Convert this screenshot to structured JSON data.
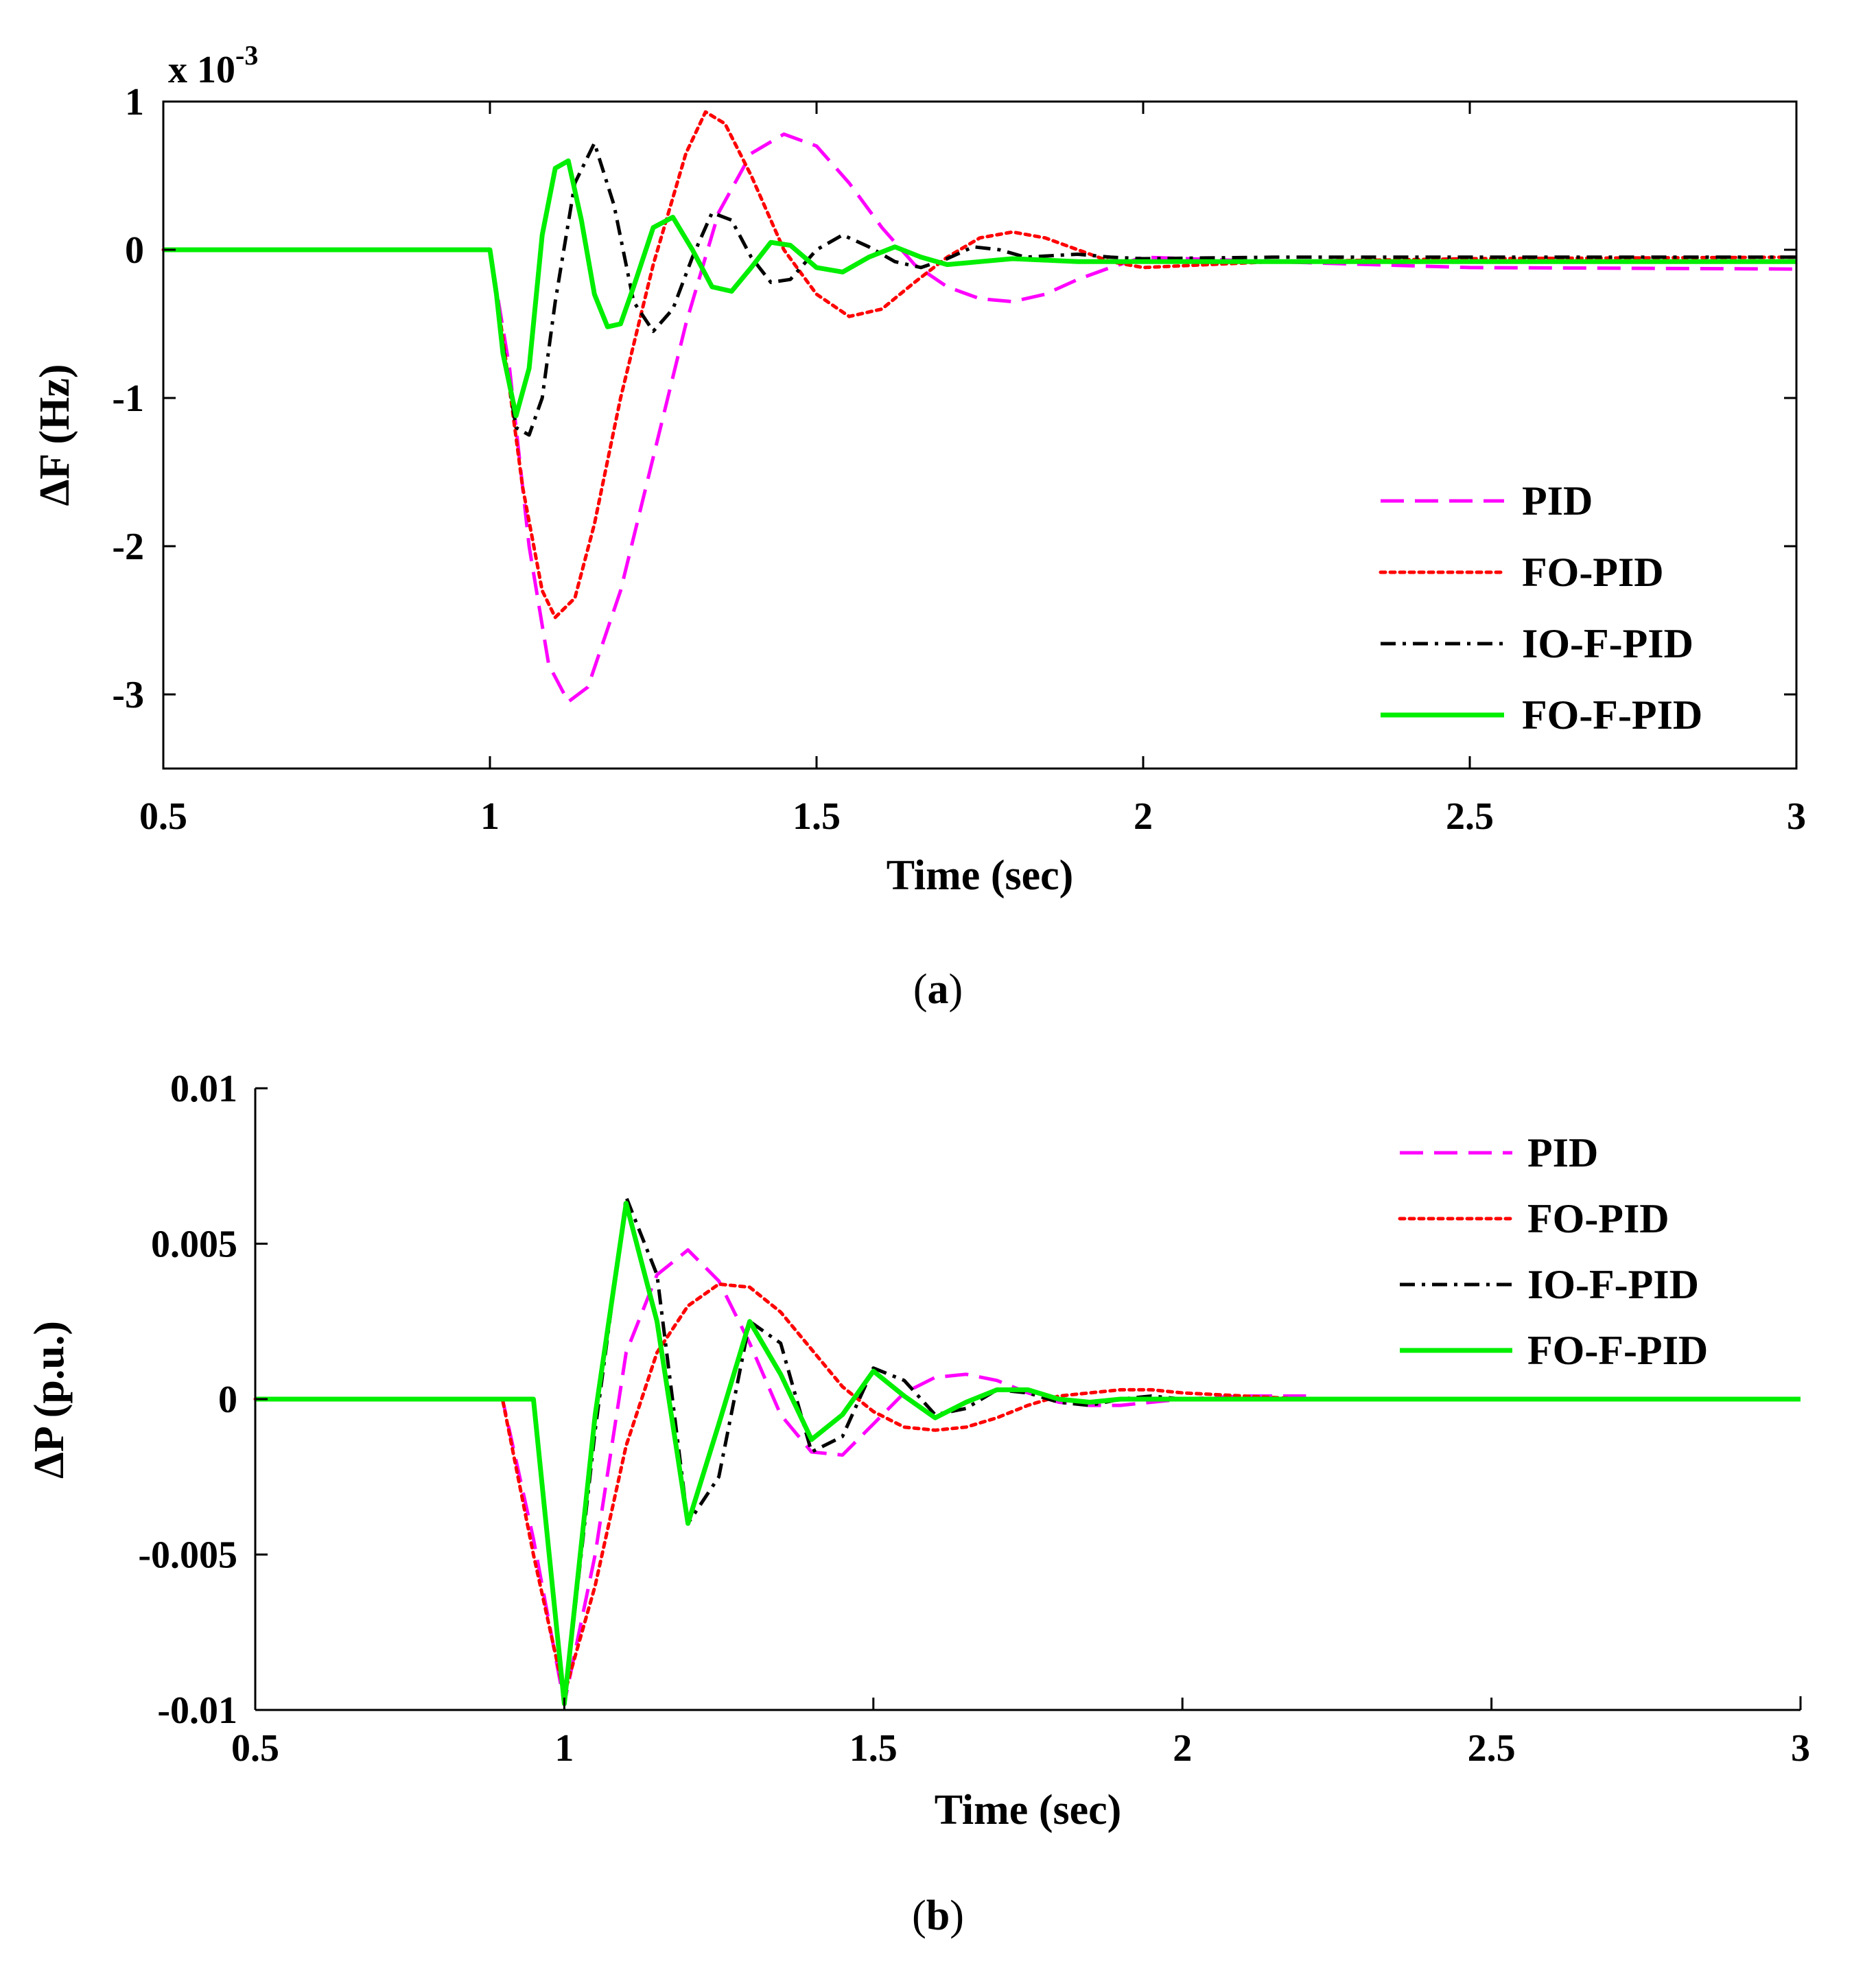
{
  "chart_data": [
    {
      "id": "a",
      "type": "line",
      "caption_letter": "a",
      "xlabel": "Time (sec)",
      "ylabel": "ΔF (Hz)",
      "multiplier_base": "x 10",
      "multiplier_exp": "-3",
      "xlim": [
        0.5,
        3
      ],
      "ylim": [
        -3.5,
        1
      ],
      "xticks": [
        0.5,
        1,
        1.5,
        2,
        2.5,
        3
      ],
      "xtick_labels": [
        "0.5",
        "1",
        "1.5",
        "2",
        "2.5",
        "3"
      ],
      "yticks": [
        -3,
        -2,
        -1,
        0,
        1
      ],
      "ytick_labels": [
        "-3",
        "-2",
        "-1",
        "0",
        "1"
      ],
      "legend_position": "bottom-right",
      "series": [
        {
          "name": "PID",
          "color": "#ff00ff",
          "style": "dashed",
          "x": [
            0.5,
            1.0,
            1.03,
            1.06,
            1.09,
            1.12,
            1.15,
            1.2,
            1.25,
            1.3,
            1.35,
            1.4,
            1.45,
            1.5,
            1.55,
            1.6,
            1.65,
            1.7,
            1.75,
            1.8,
            1.85,
            1.9,
            1.95,
            2.0,
            2.2,
            2.5,
            3.0
          ],
          "y": [
            0,
            0,
            -0.8,
            -2.0,
            -2.8,
            -3.05,
            -2.95,
            -2.3,
            -1.4,
            -0.5,
            0.25,
            0.65,
            0.78,
            0.7,
            0.45,
            0.15,
            -0.1,
            -0.25,
            -0.33,
            -0.35,
            -0.3,
            -0.2,
            -0.12,
            -0.05,
            -0.08,
            -0.12,
            -0.13
          ]
        },
        {
          "name": "FO-PID",
          "color": "#ff0000",
          "style": "dotted",
          "x": [
            0.5,
            1.0,
            1.02,
            1.05,
            1.08,
            1.1,
            1.13,
            1.16,
            1.2,
            1.25,
            1.3,
            1.33,
            1.36,
            1.4,
            1.45,
            1.5,
            1.55,
            1.6,
            1.65,
            1.7,
            1.75,
            1.8,
            1.85,
            1.9,
            1.95,
            2.0,
            2.2,
            2.5,
            3.0
          ],
          "y": [
            0,
            0,
            -0.6,
            -1.6,
            -2.3,
            -2.48,
            -2.35,
            -1.85,
            -1.0,
            -0.1,
            0.65,
            0.93,
            0.85,
            0.5,
            0.0,
            -0.3,
            -0.45,
            -0.4,
            -0.22,
            -0.05,
            0.08,
            0.12,
            0.08,
            0.0,
            -0.08,
            -0.12,
            -0.08,
            -0.06,
            -0.05
          ]
        },
        {
          "name": "IO-F-PID",
          "color": "#000000",
          "style": "dashdot",
          "x": [
            0.5,
            1.0,
            1.02,
            1.04,
            1.06,
            1.08,
            1.1,
            1.13,
            1.16,
            1.19,
            1.22,
            1.25,
            1.28,
            1.31,
            1.34,
            1.37,
            1.4,
            1.43,
            1.46,
            1.5,
            1.54,
            1.58,
            1.62,
            1.66,
            1.7,
            1.74,
            1.78,
            1.82,
            1.86,
            1.9,
            1.95,
            2.0,
            2.2,
            2.5,
            3.0
          ],
          "y": [
            0,
            0,
            -0.65,
            -1.2,
            -1.25,
            -1.0,
            -0.35,
            0.45,
            0.72,
            0.3,
            -0.35,
            -0.55,
            -0.4,
            -0.05,
            0.25,
            0.2,
            -0.05,
            -0.22,
            -0.2,
            0.0,
            0.1,
            0.02,
            -0.08,
            -0.12,
            -0.06,
            0.02,
            0.0,
            -0.05,
            -0.04,
            -0.03,
            -0.05,
            -0.06,
            -0.05,
            -0.05,
            -0.05
          ]
        },
        {
          "name": "FO-F-PID",
          "color": "#00ee00",
          "style": "solid",
          "x": [
            0.5,
            1.0,
            1.01,
            1.02,
            1.04,
            1.06,
            1.08,
            1.1,
            1.12,
            1.14,
            1.16,
            1.18,
            1.2,
            1.22,
            1.25,
            1.28,
            1.31,
            1.34,
            1.37,
            1.4,
            1.43,
            1.46,
            1.5,
            1.54,
            1.58,
            1.62,
            1.66,
            1.7,
            1.75,
            1.8,
            1.85,
            1.9,
            1.95,
            2.0,
            2.2,
            2.5,
            3.0
          ],
          "y": [
            0,
            0,
            -0.3,
            -0.7,
            -1.12,
            -0.8,
            0.1,
            0.55,
            0.6,
            0.2,
            -0.3,
            -0.52,
            -0.5,
            -0.25,
            0.15,
            0.22,
            0.0,
            -0.25,
            -0.28,
            -0.12,
            0.05,
            0.03,
            -0.12,
            -0.15,
            -0.05,
            0.02,
            -0.05,
            -0.1,
            -0.08,
            -0.06,
            -0.07,
            -0.08,
            -0.08,
            -0.08,
            -0.08,
            -0.08,
            -0.08
          ]
        }
      ]
    },
    {
      "id": "b",
      "type": "line",
      "caption_letter": "b",
      "xlabel": "Time (sec)",
      "ylabel": "ΔP (p.u.)",
      "xlim": [
        0.5,
        3
      ],
      "ylim": [
        -0.01,
        0.01
      ],
      "xticks": [
        0.5,
        1,
        1.5,
        2,
        2.5,
        3
      ],
      "xtick_labels": [
        "0.5",
        "1",
        "1.5",
        "2",
        "2.5",
        "3"
      ],
      "yticks": [
        -0.01,
        -0.005,
        0,
        0.005,
        0.01
      ],
      "ytick_labels": [
        "-0.01",
        "-0.005",
        "0",
        "0.005",
        "0.01"
      ],
      "legend_position": "top-right",
      "series": [
        {
          "name": "PID",
          "color": "#ff00ff",
          "style": "dashed",
          "x": [
            0.5,
            0.9,
            0.95,
            1.0,
            1.05,
            1.1,
            1.15,
            1.2,
            1.25,
            1.3,
            1.35,
            1.4,
            1.45,
            1.5,
            1.55,
            1.6,
            1.65,
            1.7,
            1.75,
            1.8,
            1.85,
            1.9,
            1.95,
            2.0,
            2.1,
            2.2
          ],
          "y": [
            0,
            0,
            -0.0045,
            -0.0098,
            -0.005,
            0.0015,
            0.004,
            0.0048,
            0.0038,
            0.0018,
            -0.0005,
            -0.0017,
            -0.0018,
            -0.0008,
            0.0002,
            0.0007,
            0.0008,
            0.0006,
            0.0002,
            -0.0001,
            -0.0002,
            -0.0002,
            -0.0001,
            0.0,
            0.0001,
            0.0001
          ]
        },
        {
          "name": "FO-PID",
          "color": "#ff0000",
          "style": "dotted",
          "x": [
            0.5,
            0.9,
            0.95,
            1.0,
            1.05,
            1.1,
            1.15,
            1.2,
            1.25,
            1.3,
            1.35,
            1.4,
            1.45,
            1.5,
            1.55,
            1.6,
            1.65,
            1.7,
            1.75,
            1.8,
            1.85,
            1.9,
            1.95,
            2.0,
            2.1,
            2.2,
            2.4
          ],
          "y": [
            0,
            0,
            -0.005,
            -0.0095,
            -0.006,
            -0.0015,
            0.0015,
            0.003,
            0.0037,
            0.0036,
            0.0028,
            0.0016,
            0.0004,
            -0.0004,
            -0.0009,
            -0.001,
            -0.0009,
            -0.0006,
            -0.0002,
            0.0001,
            0.0002,
            0.0003,
            0.0003,
            0.0002,
            0.0001,
            0.0,
            0.0
          ]
        },
        {
          "name": "IO-F-PID",
          "color": "#000000",
          "style": "dashdot",
          "x": [
            0.5,
            0.95,
            1.0,
            1.05,
            1.1,
            1.15,
            1.2,
            1.25,
            1.3,
            1.35,
            1.4,
            1.45,
            1.5,
            1.55,
            1.6,
            1.65,
            1.7,
            1.75,
            1.8,
            1.85,
            1.9,
            1.95,
            2.0,
            2.1
          ],
          "y": [
            0,
            0,
            -0.0098,
            -0.001,
            0.0065,
            0.004,
            -0.004,
            -0.0025,
            0.0025,
            0.0018,
            -0.0017,
            -0.0012,
            0.001,
            0.0006,
            -0.0005,
            -0.0003,
            0.0003,
            0.0002,
            -0.0001,
            -0.0002,
            0.0,
            0.0001,
            0.0,
            0.0
          ]
        },
        {
          "name": "FO-F-PID",
          "color": "#00ee00",
          "style": "solid",
          "x": [
            0.5,
            0.95,
            1.0,
            1.05,
            1.1,
            1.15,
            1.2,
            1.25,
            1.3,
            1.35,
            1.4,
            1.45,
            1.5,
            1.55,
            1.6,
            1.65,
            1.7,
            1.75,
            1.8,
            1.85,
            1.9,
            2.0,
            3.0
          ],
          "y": [
            0,
            0,
            -0.0098,
            -0.0005,
            0.0063,
            0.0025,
            -0.004,
            -0.0008,
            0.0025,
            0.0008,
            -0.0013,
            -0.0005,
            0.0009,
            0.0001,
            -0.0006,
            -0.0001,
            0.0003,
            0.0003,
            0.0,
            -0.0001,
            0.0,
            0.0,
            0.0
          ]
        }
      ]
    }
  ]
}
